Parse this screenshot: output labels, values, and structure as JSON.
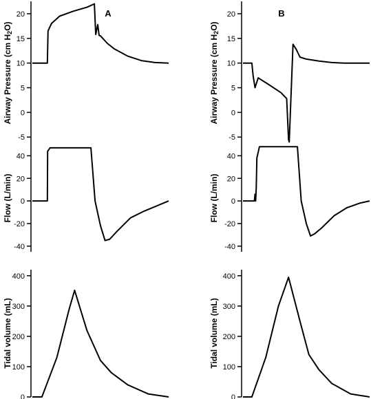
{
  "panels": [
    {
      "label": "A",
      "charts": [
        {
          "type": "line",
          "ylabel": "Airway Pressure (cm H2O)",
          "ylabel_parts": [
            "Airway Pressure (cm H",
            "2",
            "O)"
          ],
          "yticks": [
            -5,
            0,
            5,
            10,
            15,
            20
          ],
          "ylim": [
            -6.5,
            22.5
          ],
          "x": [
            0,
            0.11,
            0.115,
            0.14,
            0.2,
            0.3,
            0.4,
            0.455,
            0.465,
            0.48,
            0.49,
            0.5,
            0.55,
            0.6,
            0.7,
            0.8,
            0.9,
            1.0
          ],
          "y": [
            10,
            10,
            16.5,
            18,
            19.5,
            20.5,
            21.3,
            22,
            15.8,
            17.8,
            15.6,
            15.5,
            14,
            12.9,
            11.4,
            10.5,
            10.1,
            10
          ]
        },
        {
          "type": "line",
          "ylabel": "Flow (L/min)",
          "yticks": [
            -40,
            -20,
            0,
            20,
            40
          ],
          "ylim": [
            -45,
            50
          ],
          "x": [
            0,
            0.11,
            0.112,
            0.13,
            0.25,
            0.4,
            0.43,
            0.46,
            0.5,
            0.5333,
            0.5667,
            0.62,
            0.72,
            0.82,
            0.92,
            1.0
          ],
          "y": [
            0,
            0,
            44,
            47,
            47,
            47,
            47,
            0,
            -22,
            -35,
            -34,
            -27,
            -15,
            -9,
            -4,
            0
          ]
        },
        {
          "type": "line",
          "ylabel": "Tidal volume (mL)",
          "yticks": [
            0,
            100,
            200,
            300,
            400
          ],
          "ylim": [
            0,
            420
          ],
          "x": [
            0,
            0.07,
            0.18,
            0.27,
            0.31,
            0.4,
            0.5,
            0.58,
            0.7,
            0.85,
            1.0
          ],
          "y": [
            0,
            0,
            130,
            290,
            352,
            220,
            120,
            80,
            40,
            10,
            0
          ]
        }
      ]
    },
    {
      "label": "B",
      "charts": [
        {
          "type": "line",
          "ylabel": "Airway Pressure (cm H2O)",
          "ylabel_parts": [
            "Airway Pressure (cm H",
            "2",
            "O)"
          ],
          "yticks": [
            -5,
            0,
            5,
            10,
            15,
            20
          ],
          "ylim": [
            -6.5,
            22.5
          ],
          "x": [
            0,
            0.07,
            0.08,
            0.095,
            0.12,
            0.2,
            0.3,
            0.345,
            0.36,
            0.365,
            0.395,
            0.42,
            0.45,
            0.5,
            0.6,
            0.7,
            0.8,
            0.9,
            1.0
          ],
          "y": [
            10,
            10,
            7.5,
            5,
            7,
            5.7,
            4,
            2.8,
            -5.5,
            -6,
            13.8,
            12.8,
            11.2,
            10.8,
            10.4,
            10.1,
            10,
            10,
            10
          ]
        },
        {
          "type": "line",
          "ylabel": "Flow (L/min)",
          "yticks": [
            -40,
            -20,
            0,
            20,
            40
          ],
          "ylim": [
            -45,
            50
          ],
          "x": [
            0,
            0.09,
            0.095,
            0.1,
            0.105,
            0.11,
            0.13,
            0.3,
            0.4,
            0.43,
            0.46,
            0.5,
            0.5333,
            0.5667,
            0.62,
            0.72,
            0.82,
            0.92,
            1.0
          ],
          "y": [
            0,
            0,
            6,
            0,
            12,
            38,
            48,
            48,
            48,
            48,
            0,
            -20,
            -31,
            -29,
            -24,
            -13,
            -6,
            -2,
            0
          ]
        },
        {
          "type": "line",
          "ylabel": "Tidal volume (mL)",
          "yticks": [
            0,
            100,
            200,
            300,
            400
          ],
          "ylim": [
            0,
            420
          ],
          "x": [
            0,
            0.07,
            0.18,
            0.28,
            0.36,
            0.45,
            0.52,
            0.6,
            0.7,
            0.85,
            1.0
          ],
          "y": [
            0,
            0,
            130,
            300,
            395,
            250,
            140,
            90,
            45,
            10,
            0
          ]
        }
      ]
    }
  ]
}
